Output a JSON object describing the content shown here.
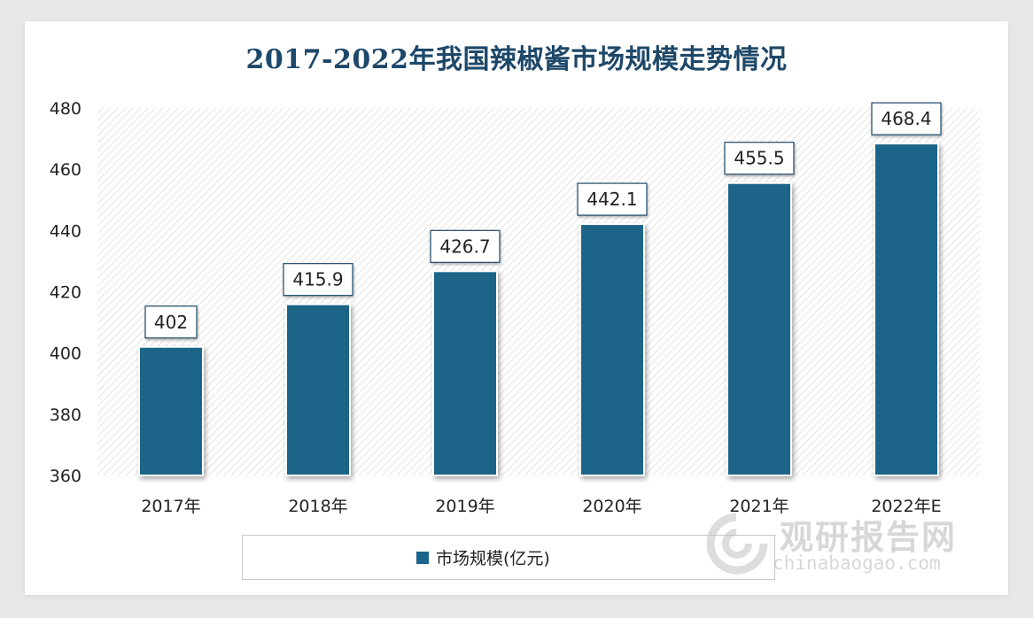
{
  "title": "2017-2022年我国辣椒酱市场规模走势情况",
  "chart_data": {
    "type": "bar",
    "title": "2017-2022年我国辣椒酱市场规模走势情况",
    "categories": [
      "2017年",
      "2018年",
      "2019年",
      "2020年",
      "2021年",
      "2022年E"
    ],
    "series": [
      {
        "name": "市场规模(亿元)",
        "values": [
          402,
          415.9,
          426.7,
          442.1,
          455.5,
          468.4
        ],
        "labels": [
          "402",
          "415.9",
          "426.7",
          "442.1",
          "455.5",
          "468.4"
        ]
      }
    ],
    "ylim": [
      360,
      480
    ],
    "yticks": [
      360,
      380,
      400,
      420,
      440,
      460,
      480
    ],
    "xlabel": "",
    "ylabel": "",
    "grid": false,
    "legend_position": "bottom",
    "colors": {
      "bar": "#1a6589",
      "title": "#1e4869",
      "plot_hatch": "#d5d5d5"
    }
  },
  "legend": {
    "label": "市场规模(亿元)"
  },
  "watermark": {
    "cn": "观研报告网",
    "en": "chinabaogao.com",
    "icon": "chinabaogao-logo-icon"
  }
}
